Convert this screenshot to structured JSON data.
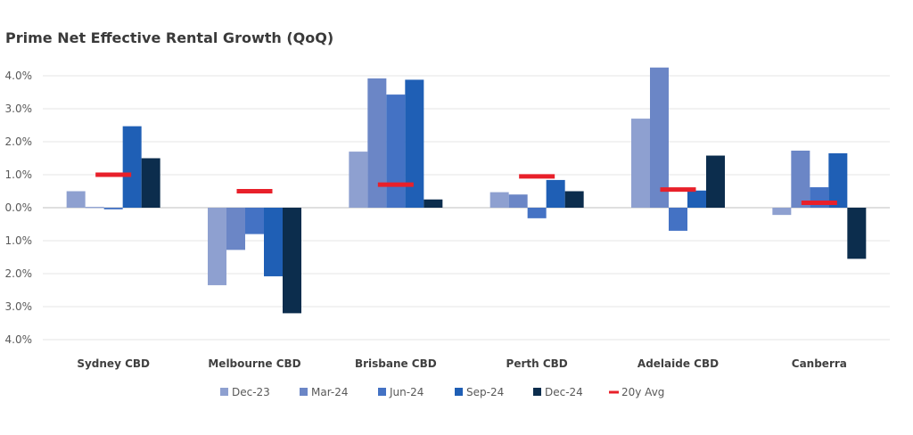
{
  "chart_data": {
    "type": "bar",
    "title": "Prime Net Effective Rental Growth (QoQ)",
    "categories": [
      "Sydney CBD",
      "Melbourne CBD",
      "Brisbane CBD",
      "Perth CBD",
      "Adelaide CBD",
      "Canberra"
    ],
    "series": [
      {
        "name": "Dec-23",
        "color": "#8ea0d0",
        "values": [
          0.5,
          -2.35,
          1.7,
          0.47,
          2.7,
          -0.22
        ]
      },
      {
        "name": "Mar-24",
        "color": "#6b86c6",
        "values": [
          0.02,
          -1.28,
          3.92,
          0.4,
          4.25,
          1.73
        ]
      },
      {
        "name": "Jun-24",
        "color": "#4472c4",
        "values": [
          -0.05,
          -0.8,
          3.43,
          -0.32,
          -0.7,
          0.62
        ]
      },
      {
        "name": "Sep-24",
        "color": "#1f5fb5",
        "values": [
          2.47,
          -2.08,
          3.88,
          0.84,
          0.52,
          1.65
        ]
      },
      {
        "name": "Dec-24",
        "color": "#0c2d4d",
        "values": [
          1.5,
          -3.2,
          0.25,
          0.5,
          1.58,
          -1.55
        ]
      }
    ],
    "avg": {
      "name": "20y Avg",
      "color": "#e8202a",
      "values": [
        1.0,
        0.5,
        0.7,
        0.95,
        0.55,
        0.15
      ]
    },
    "ylim": [
      -4,
      4.3
    ],
    "yticks": [
      {
        "v": 4,
        "label": "4.0%"
      },
      {
        "v": 3,
        "label": "3.0%"
      },
      {
        "v": 2,
        "label": "2.0%"
      },
      {
        "v": 1,
        "label": "1.0%"
      },
      {
        "v": 0,
        "label": "0.0%"
      },
      {
        "v": -1,
        "label": "1.0%"
      },
      {
        "v": -2,
        "label": "2.0%"
      },
      {
        "v": -3,
        "label": "3.0%"
      },
      {
        "v": -4,
        "label": "4.0%"
      }
    ],
    "grid": true,
    "legend_position": "bottom"
  }
}
